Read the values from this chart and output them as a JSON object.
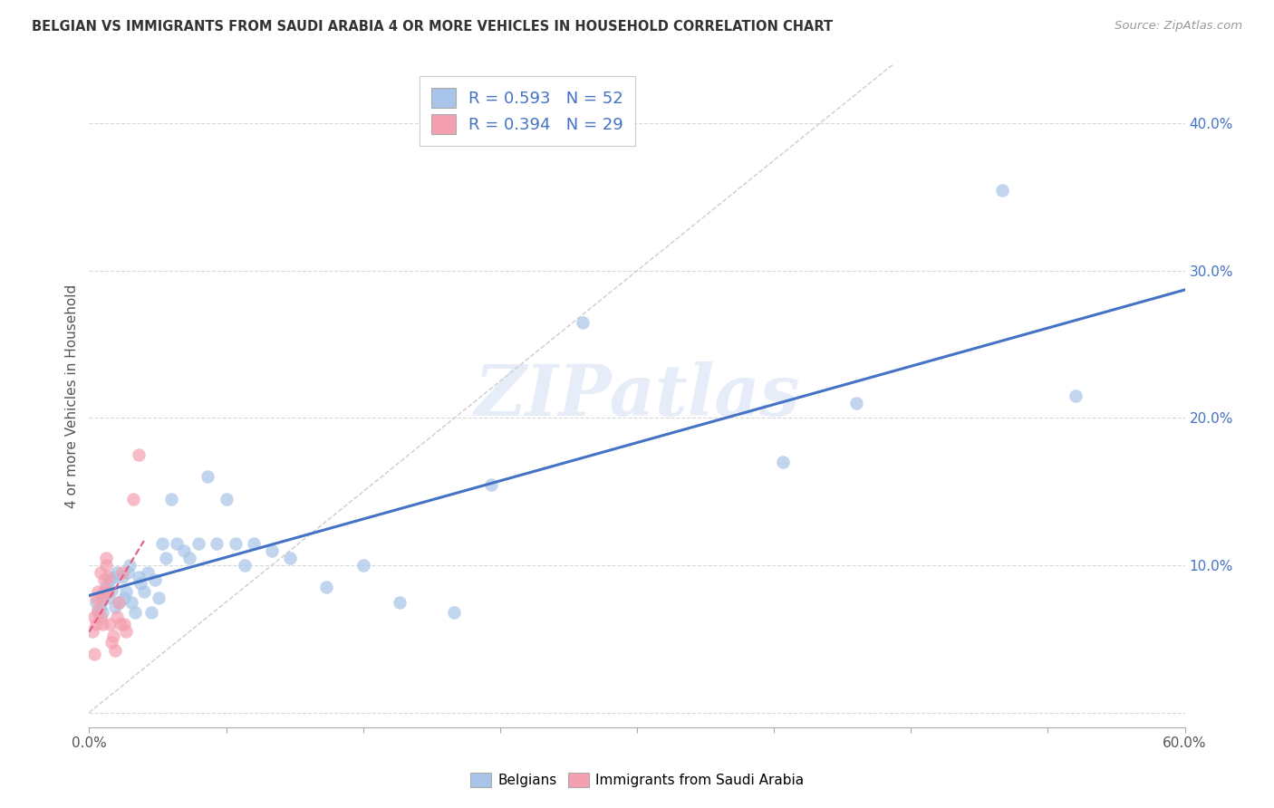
{
  "title": "BELGIAN VS IMMIGRANTS FROM SAUDI ARABIA 4 OR MORE VEHICLES IN HOUSEHOLD CORRELATION CHART",
  "source": "Source: ZipAtlas.com",
  "ylabel": "4 or more Vehicles in Household",
  "xlim": [
    0.0,
    0.6
  ],
  "ylim": [
    -0.01,
    0.44
  ],
  "xticks": [
    0.0,
    0.075,
    0.15,
    0.225,
    0.3,
    0.375,
    0.45,
    0.525,
    0.6
  ],
  "yticks": [
    0.0,
    0.1,
    0.2,
    0.3,
    0.4
  ],
  "ytick_labels": [
    "",
    "10.0%",
    "20.0%",
    "30.0%",
    "40.0%"
  ],
  "xtick_labels_ends": [
    "0.0%",
    "60.0%"
  ],
  "R_belgian": 0.593,
  "N_belgian": 52,
  "R_saudi": 0.394,
  "N_saudi": 29,
  "color_belgian": "#a8c4e8",
  "color_saudi": "#f4a0b0",
  "line_color_belgian": "#4472c4",
  "line_color_saudi": "#e06080",
  "diag_color": "#c8c8c8",
  "belgian_x": [
    0.004,
    0.005,
    0.006,
    0.007,
    0.008,
    0.009,
    0.01,
    0.011,
    0.012,
    0.013,
    0.014,
    0.015,
    0.016,
    0.018,
    0.019,
    0.02,
    0.021,
    0.022,
    0.023,
    0.025,
    0.027,
    0.028,
    0.03,
    0.032,
    0.034,
    0.036,
    0.038,
    0.04,
    0.042,
    0.045,
    0.048,
    0.052,
    0.055,
    0.06,
    0.065,
    0.07,
    0.075,
    0.08,
    0.085,
    0.09,
    0.1,
    0.11,
    0.13,
    0.15,
    0.17,
    0.2,
    0.22,
    0.27,
    0.38,
    0.42,
    0.5,
    0.54
  ],
  "belgian_y": [
    0.075,
    0.068,
    0.072,
    0.068,
    0.08,
    0.085,
    0.078,
    0.09,
    0.083,
    0.092,
    0.072,
    0.095,
    0.075,
    0.092,
    0.078,
    0.082,
    0.095,
    0.1,
    0.075,
    0.068,
    0.092,
    0.088,
    0.082,
    0.095,
    0.068,
    0.09,
    0.078,
    0.115,
    0.105,
    0.145,
    0.115,
    0.11,
    0.105,
    0.115,
    0.16,
    0.115,
    0.145,
    0.115,
    0.1,
    0.115,
    0.11,
    0.105,
    0.085,
    0.1,
    0.075,
    0.068,
    0.155,
    0.265,
    0.17,
    0.21,
    0.355,
    0.215
  ],
  "saudi_x": [
    0.002,
    0.003,
    0.003,
    0.004,
    0.004,
    0.005,
    0.005,
    0.006,
    0.006,
    0.007,
    0.007,
    0.008,
    0.008,
    0.009,
    0.009,
    0.01,
    0.01,
    0.011,
    0.012,
    0.013,
    0.014,
    0.015,
    0.016,
    0.017,
    0.018,
    0.019,
    0.02,
    0.024,
    0.027
  ],
  "saudi_y": [
    0.055,
    0.04,
    0.065,
    0.06,
    0.078,
    0.07,
    0.082,
    0.065,
    0.095,
    0.06,
    0.078,
    0.082,
    0.09,
    0.1,
    0.105,
    0.092,
    0.082,
    0.06,
    0.048,
    0.052,
    0.042,
    0.065,
    0.075,
    0.06,
    0.095,
    0.06,
    0.055,
    0.145,
    0.175
  ],
  "watermark": "ZIPatlas",
  "background_color": "#ffffff",
  "grid_color": "#d8d8d8"
}
